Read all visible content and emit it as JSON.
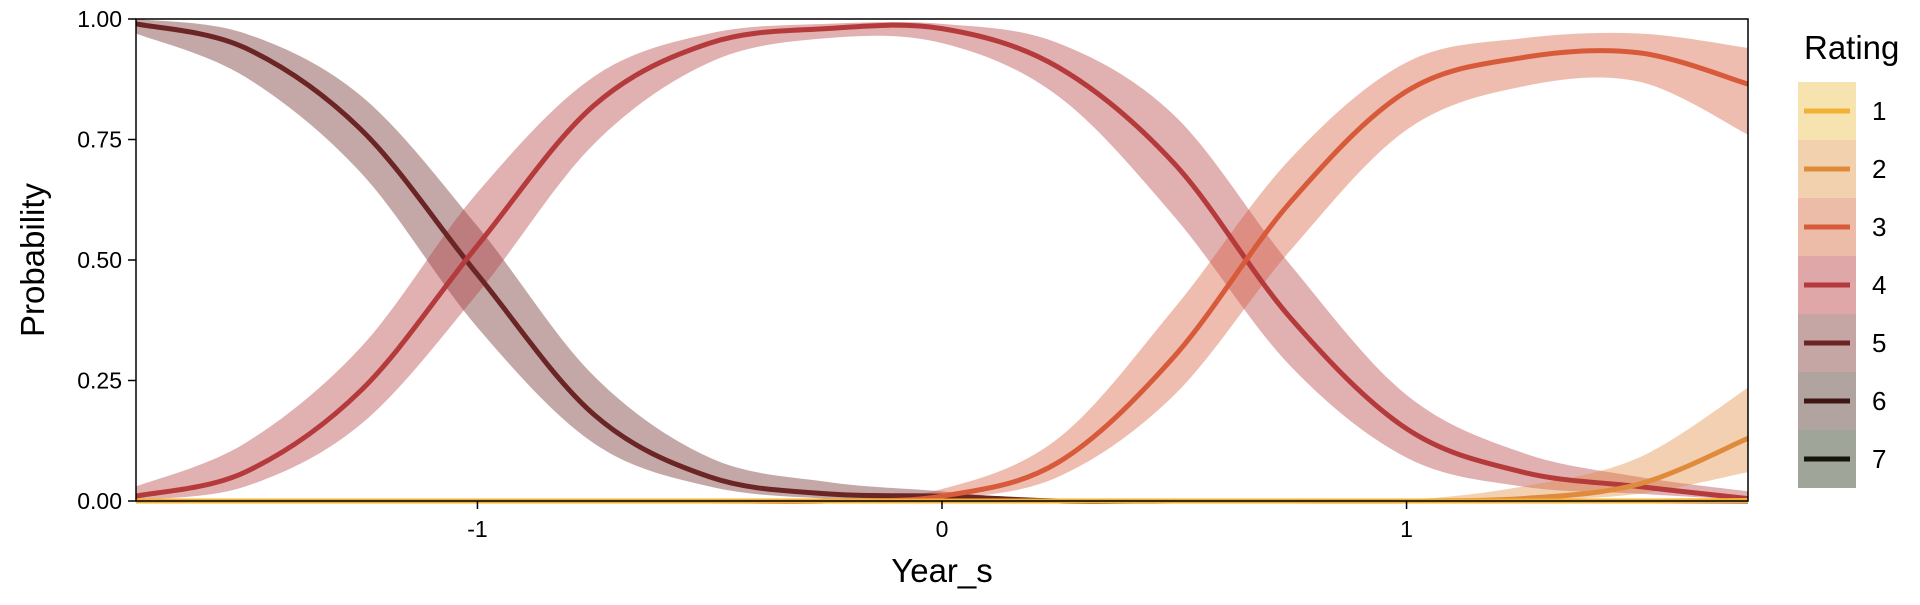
{
  "chart_data": {
    "type": "line",
    "xlabel": "Year_s",
    "ylabel": "Probability",
    "xlim": [
      -1.735,
      1.735
    ],
    "ylim": [
      0,
      1
    ],
    "x_ticks": [
      -1,
      0,
      1
    ],
    "x_tick_labels": [
      "-1",
      "0",
      "1"
    ],
    "y_ticks": [
      0,
      0.25,
      0.5,
      0.75,
      1
    ],
    "y_tick_labels": [
      "0.00",
      "0.25",
      "0.50",
      "0.75",
      "1.00"
    ],
    "grid": false,
    "legend": {
      "title": "Rating",
      "position": "right"
    },
    "x": [
      -1.735,
      -1.5,
      -1.25,
      -1.0,
      -0.75,
      -0.5,
      -0.25,
      0.0,
      0.25,
      0.5,
      0.75,
      1.0,
      1.25,
      1.5,
      1.735
    ],
    "series": [
      {
        "name": "1",
        "color": "#F2B134",
        "band_color": "#F7E3B0",
        "values": [
          0,
          0,
          0,
          0,
          0,
          0,
          0,
          0,
          0,
          0,
          0,
          0,
          0,
          0,
          0.001
        ],
        "lower": [
          0,
          0,
          0,
          0,
          0,
          0,
          0,
          0,
          0,
          0,
          0,
          0,
          0,
          0,
          0
        ],
        "upper": [
          0,
          0,
          0,
          0,
          0,
          0,
          0,
          0,
          0,
          0,
          0,
          0,
          0,
          0,
          0.005
        ]
      },
      {
        "name": "2",
        "color": "#E08A3C",
        "band_color": "#F2D1AE",
        "values": [
          0,
          0,
          0,
          0,
          0,
          0,
          0,
          0,
          0,
          0,
          0,
          0,
          0.005,
          0.035,
          0.13
        ],
        "lower": [
          0,
          0,
          0,
          0,
          0,
          0,
          0,
          0,
          0,
          0,
          0,
          0,
          0.001,
          0.015,
          0.06
        ],
        "upper": [
          0,
          0,
          0,
          0,
          0,
          0,
          0,
          0,
          0,
          0,
          0,
          0.002,
          0.03,
          0.09,
          0.235
        ]
      },
      {
        "name": "3",
        "color": "#D75B3A",
        "band_color": "#EDBCA9",
        "values": [
          0,
          0,
          0,
          0,
          0,
          0,
          0,
          0.01,
          0.08,
          0.3,
          0.62,
          0.85,
          0.92,
          0.93,
          0.865
        ],
        "lower": [
          0,
          0,
          0,
          0,
          0,
          0,
          0,
          0.004,
          0.05,
          0.22,
          0.52,
          0.77,
          0.86,
          0.87,
          0.76
        ],
        "upper": [
          0,
          0,
          0,
          0,
          0,
          0,
          0,
          0.025,
          0.13,
          0.4,
          0.71,
          0.91,
          0.96,
          0.97,
          0.94
        ]
      },
      {
        "name": "4",
        "color": "#B43A3C",
        "band_color": "#DFA7A8",
        "values": [
          0.01,
          0.06,
          0.23,
          0.53,
          0.82,
          0.95,
          0.98,
          0.98,
          0.9,
          0.7,
          0.38,
          0.15,
          0.06,
          0.03,
          0.005
        ],
        "lower": [
          0.002,
          0.03,
          0.16,
          0.43,
          0.74,
          0.91,
          0.96,
          0.95,
          0.84,
          0.59,
          0.28,
          0.09,
          0.03,
          0.015,
          0.002
        ],
        "upper": [
          0.03,
          0.12,
          0.32,
          0.64,
          0.88,
          0.97,
          0.99,
          0.99,
          0.95,
          0.8,
          0.49,
          0.22,
          0.1,
          0.05,
          0.02
        ]
      },
      {
        "name": "5",
        "color": "#6B2525",
        "band_color": "#C6A5A5",
        "values": [
          0.99,
          0.94,
          0.77,
          0.47,
          0.18,
          0.05,
          0.015,
          0.01,
          0,
          0,
          0,
          0,
          0,
          0,
          0
        ],
        "lower": [
          0.97,
          0.88,
          0.68,
          0.36,
          0.12,
          0.03,
          0.005,
          0.002,
          0,
          0,
          0,
          0,
          0,
          0,
          0
        ],
        "upper": [
          1.0,
          0.97,
          0.84,
          0.57,
          0.26,
          0.09,
          0.04,
          0.02,
          0,
          0,
          0,
          0,
          0,
          0,
          0
        ]
      },
      {
        "name": "6",
        "color": "#3E1712",
        "band_color": "#B1A3A0",
        "values": [
          0,
          0,
          0,
          0,
          0,
          0,
          0,
          0,
          0,
          0,
          0,
          0,
          0,
          0,
          0
        ],
        "lower": [
          0,
          0,
          0,
          0,
          0,
          0,
          0,
          0,
          0,
          0,
          0,
          0,
          0,
          0,
          0
        ],
        "upper": [
          0,
          0,
          0,
          0,
          0,
          0,
          0,
          0,
          0,
          0,
          0,
          0,
          0,
          0,
          0
        ]
      },
      {
        "name": "7",
        "color": "#141408",
        "band_color": "#A0A59A",
        "values": [
          0,
          0,
          0,
          0,
          0,
          0,
          0,
          0,
          0,
          0,
          0,
          0,
          0,
          0,
          0
        ],
        "lower": [
          0,
          0,
          0,
          0,
          0,
          0,
          0,
          0,
          0,
          0,
          0,
          0,
          0,
          0,
          0
        ],
        "upper": [
          0,
          0,
          0,
          0,
          0,
          0,
          0,
          0,
          0,
          0,
          0,
          0,
          0,
          0,
          0
        ]
      }
    ]
  }
}
